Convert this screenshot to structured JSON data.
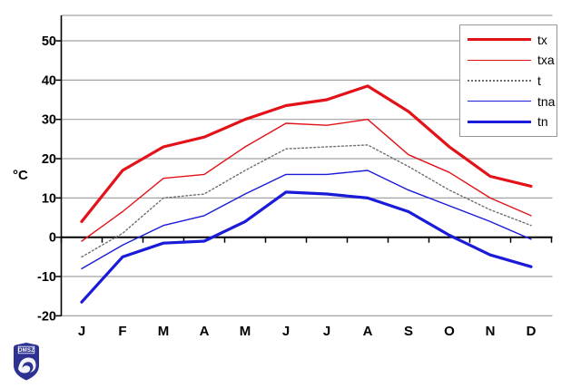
{
  "chart_data": {
    "type": "line",
    "title": "",
    "categories": [
      "J",
      "F",
      "M",
      "A",
      "M",
      "J",
      "J",
      "A",
      "S",
      "O",
      "N",
      "D"
    ],
    "series": [
      {
        "name": "tx",
        "color": "#e31219",
        "width": 3.2,
        "dash": "",
        "values": [
          4,
          17,
          23,
          25.5,
          30,
          33.5,
          35,
          38.5,
          32,
          23,
          15.5,
          13
        ]
      },
      {
        "name": "txa",
        "color": "#e31219",
        "width": 1.4,
        "dash": "",
        "values": [
          -1,
          6.5,
          15,
          16,
          23,
          29,
          28.5,
          30,
          21,
          16.5,
          10,
          5.5
        ]
      },
      {
        "name": "t",
        "color": "#6e6e6e",
        "width": 1.4,
        "dash": "1.8,2.6",
        "values": [
          -5,
          1,
          10,
          11,
          17,
          22.5,
          23,
          23.5,
          18,
          12,
          7,
          3
        ]
      },
      {
        "name": "tna",
        "color": "#1a1ad9",
        "width": 1.4,
        "dash": "",
        "values": [
          -8,
          -2,
          3,
          5.5,
          11,
          16,
          16,
          17,
          12,
          8,
          4,
          -0.5
        ]
      },
      {
        "name": "tn",
        "color": "#1a1ad9",
        "width": 3.2,
        "dash": "",
        "values": [
          -16.5,
          -5,
          -1.5,
          -1,
          4,
          11.5,
          11,
          10,
          6.5,
          0.5,
          -4.5,
          -7.5
        ]
      }
    ],
    "xlabel": "",
    "ylabel": "°C",
    "yticks": [
      50,
      40,
      30,
      20,
      10,
      0,
      -10,
      -20
    ],
    "ylim": [
      -20,
      56
    ],
    "grid": true,
    "legend_position": "top-right",
    "legend_labels": [
      "tx",
      "txa",
      "t",
      "tna",
      "tn"
    ]
  },
  "colors": {
    "gridline": "#a3a3a3",
    "axis": "#000000",
    "legend_border": "#969696",
    "logo_blue": "#2d3192"
  },
  "logo": {
    "text": "OMSZ"
  }
}
